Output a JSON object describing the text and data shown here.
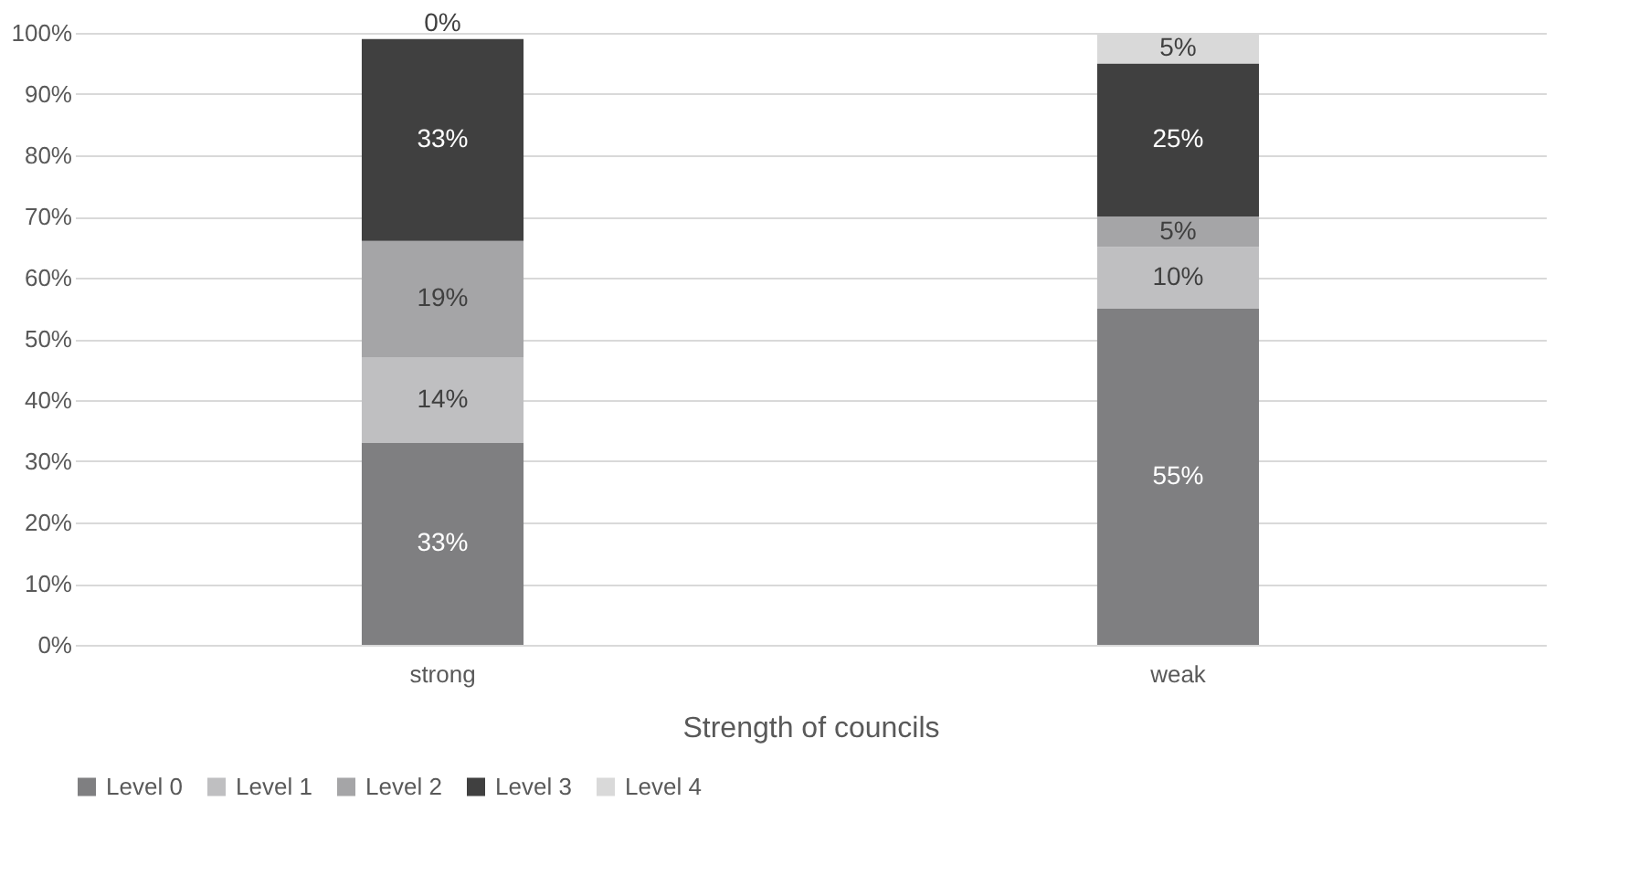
{
  "chart_data": {
    "type": "bar",
    "stacked": true,
    "xlabel": "Strength of councils",
    "categories": [
      "strong",
      "weak"
    ],
    "series": [
      {
        "name": "Level 0",
        "color": "#7f7f81",
        "values": [
          33,
          55
        ],
        "value_labels": [
          "33%",
          "55%"
        ]
      },
      {
        "name": "Level 1",
        "color": "#bfbfc1",
        "values": [
          14,
          10
        ],
        "value_labels": [
          "14%",
          "10%"
        ]
      },
      {
        "name": "Level 2",
        "color": "#a5a5a7",
        "values": [
          19,
          5
        ],
        "value_labels": [
          "19%",
          "5%"
        ]
      },
      {
        "name": "Level 3",
        "color": "#404040",
        "values": [
          33,
          25
        ],
        "value_labels": [
          "33%",
          "25%"
        ]
      },
      {
        "name": "Level 4",
        "color": "#d9d9d9",
        "values": [
          0,
          5
        ],
        "value_labels": [
          "0%",
          "5%"
        ]
      }
    ],
    "ylim": [
      0,
      100
    ],
    "yticks": [
      {
        "value": 0,
        "label": "0%"
      },
      {
        "value": 10,
        "label": "10%"
      },
      {
        "value": 20,
        "label": "20%"
      },
      {
        "value": 30,
        "label": "30%"
      },
      {
        "value": 40,
        "label": "40%"
      },
      {
        "value": 50,
        "label": "50%"
      },
      {
        "value": 60,
        "label": "60%"
      },
      {
        "value": 70,
        "label": "70%"
      },
      {
        "value": 80,
        "label": "80%"
      },
      {
        "value": 90,
        "label": "90%"
      },
      {
        "value": 100,
        "label": "100%"
      }
    ],
    "grid": "y",
    "legend": "bottom"
  }
}
